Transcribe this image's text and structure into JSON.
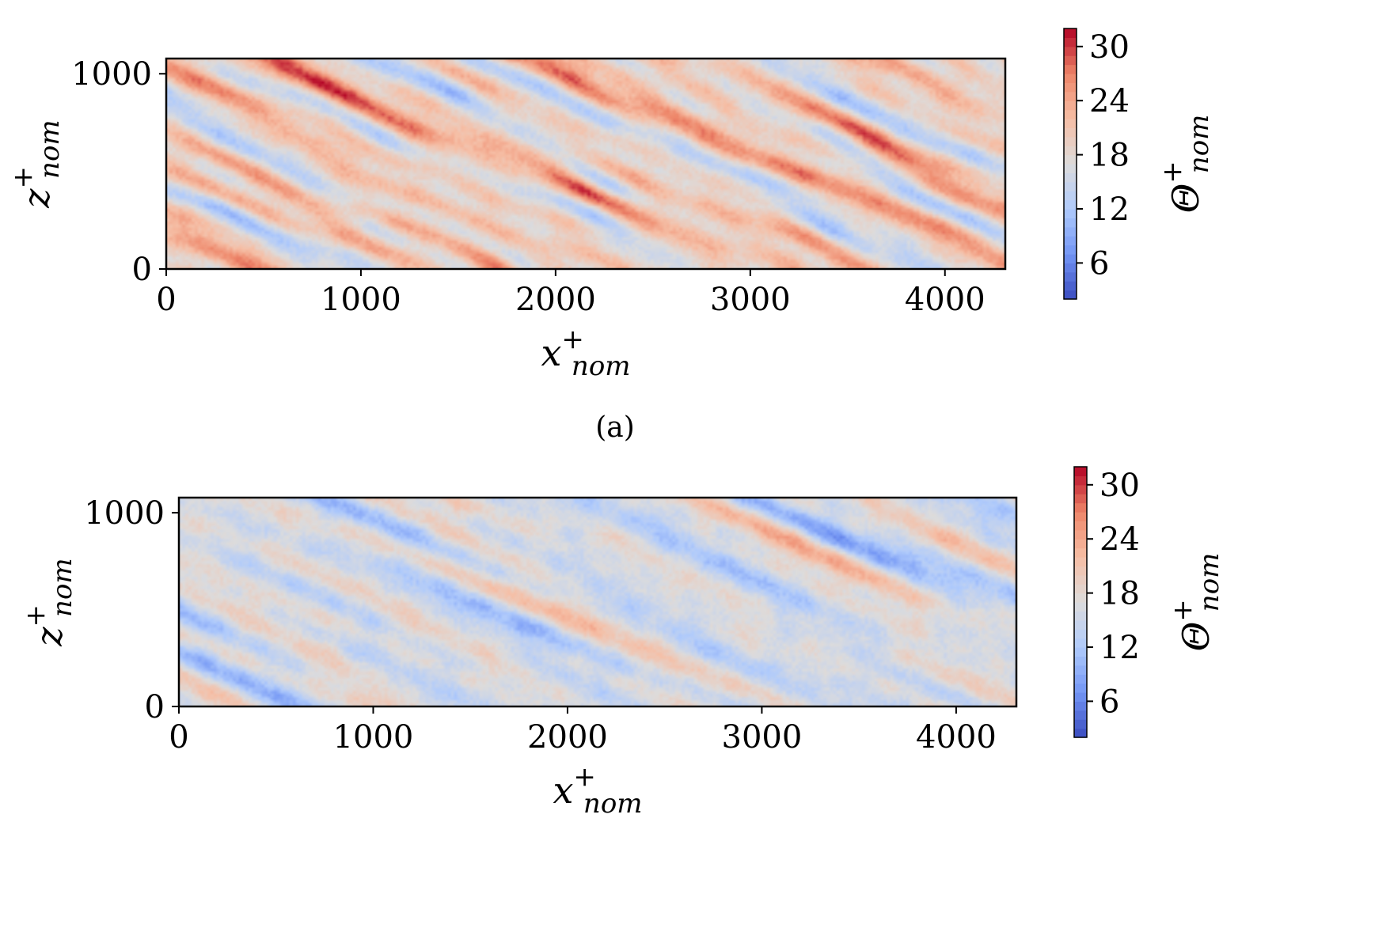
{
  "chart_data": [
    {
      "type": "heatmap",
      "caption": "(a)",
      "xlabel": "x",
      "xlabel_sup": "+",
      "xlabel_sub": "nom",
      "ylabel": "z",
      "ylabel_sup": "+",
      "ylabel_sub": "nom",
      "xlim": [
        0,
        4310
      ],
      "ylim": [
        0,
        1078
      ],
      "x_ticks": [
        0,
        1000,
        2000,
        3000,
        4000
      ],
      "x_tick_labels": [
        "0",
        "1000",
        "2000",
        "3000",
        "4000"
      ],
      "y_ticks": [
        0,
        1000
      ],
      "y_tick_labels": [
        "0",
        "1000"
      ],
      "colorbar": {
        "label": "Θ",
        "label_sup": "+",
        "label_sub": "nom",
        "range": [
          2,
          32
        ],
        "ticks": [
          6,
          12,
          18,
          24,
          30
        ],
        "tick_labels": [
          "6",
          "12",
          "18",
          "24",
          "30"
        ],
        "colormap": "coolwarm",
        "colors": [
          "#3b4cc0",
          "#7396f5",
          "#b0cbfc",
          "#dddcdc",
          "#f6bfa6",
          "#ee8669",
          "#b40426"
        ]
      },
      "field_description": "streaky field inclined from upper-left to lower-right; values mostly 12–28",
      "mean_level": 19.5,
      "contrast": 8.5
    },
    {
      "type": "heatmap",
      "caption": "",
      "xlabel": "x",
      "xlabel_sup": "+",
      "xlabel_sub": "nom",
      "ylabel": "z",
      "ylabel_sup": "+",
      "ylabel_sub": "nom",
      "xlim": [
        0,
        4310
      ],
      "ylim": [
        0,
        1078
      ],
      "x_ticks": [
        0,
        1000,
        2000,
        3000,
        4000
      ],
      "x_tick_labels": [
        "0",
        "1000",
        "2000",
        "3000",
        "4000"
      ],
      "y_ticks": [
        0,
        1000
      ],
      "y_tick_labels": [
        "0",
        "1000"
      ],
      "colorbar": {
        "label": "Θ",
        "label_sup": "+",
        "label_sub": "nom",
        "range": [
          2,
          32
        ],
        "ticks": [
          6,
          12,
          18,
          24,
          30
        ],
        "tick_labels": [
          "6",
          "12",
          "18",
          "24",
          "30"
        ],
        "colormap": "coolwarm",
        "colors": [
          "#3b4cc0",
          "#7396f5",
          "#b0cbfc",
          "#dddcdc",
          "#f6bfa6",
          "#ee8669",
          "#b40426"
        ]
      },
      "field_description": "elongated streaks inclined from upper-left to lower-right; values mostly 10–24",
      "mean_level": 16.0,
      "contrast": 6.5
    }
  ]
}
